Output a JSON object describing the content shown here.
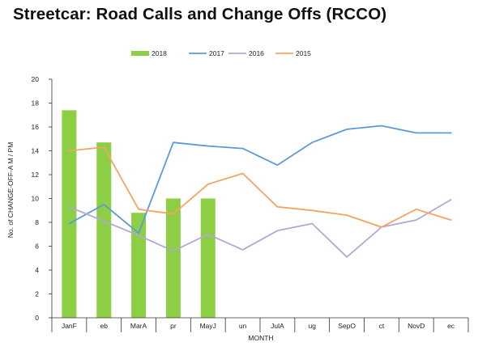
{
  "chart_data": {
    "type": "bar",
    "title": "Streetcar: Road Calls and Change Offs (RCCO)",
    "xlabel": "MONTH",
    "ylabel": "No. of CHANGE-OFF-A M / PM",
    "ylim": [
      0,
      20
    ],
    "yticks": [
      "0",
      "2",
      "4",
      "6",
      "8",
      "10",
      "12",
      "14",
      "16",
      "18",
      "20"
    ],
    "categories": [
      "JanF",
      "eb",
      "MarA",
      "pr",
      "MayJ",
      "un",
      "JulA",
      "ug",
      "SepO",
      "ct",
      "NovD",
      "ec"
    ],
    "legend_position": "top",
    "series": [
      {
        "name": "2018",
        "type": "bar",
        "color": "#8CCF45",
        "values": [
          17.4,
          14.7,
          8.8,
          10.0,
          10.0,
          null,
          null,
          null,
          null,
          null,
          null,
          null
        ]
      },
      {
        "name": "2017",
        "type": "line",
        "color": "#5B9BD5",
        "values": [
          7.9,
          9.5,
          7.1,
          14.7,
          14.4,
          14.2,
          12.8,
          14.7,
          15.8,
          16.1,
          15.5,
          15.5
        ]
      },
      {
        "name": "2016",
        "type": "line",
        "color": "#B4A7D6",
        "values": [
          9.3,
          8.1,
          6.9,
          5.6,
          7.0,
          5.7,
          7.3,
          7.9,
          5.1,
          7.6,
          8.2,
          9.9
        ]
      },
      {
        "name": "2015",
        "type": "line",
        "color": "#F4A460",
        "values": [
          14.0,
          14.3,
          9.1,
          8.7,
          11.2,
          12.1,
          9.3,
          9.0,
          8.6,
          7.6,
          9.1,
          8.2
        ]
      }
    ]
  }
}
